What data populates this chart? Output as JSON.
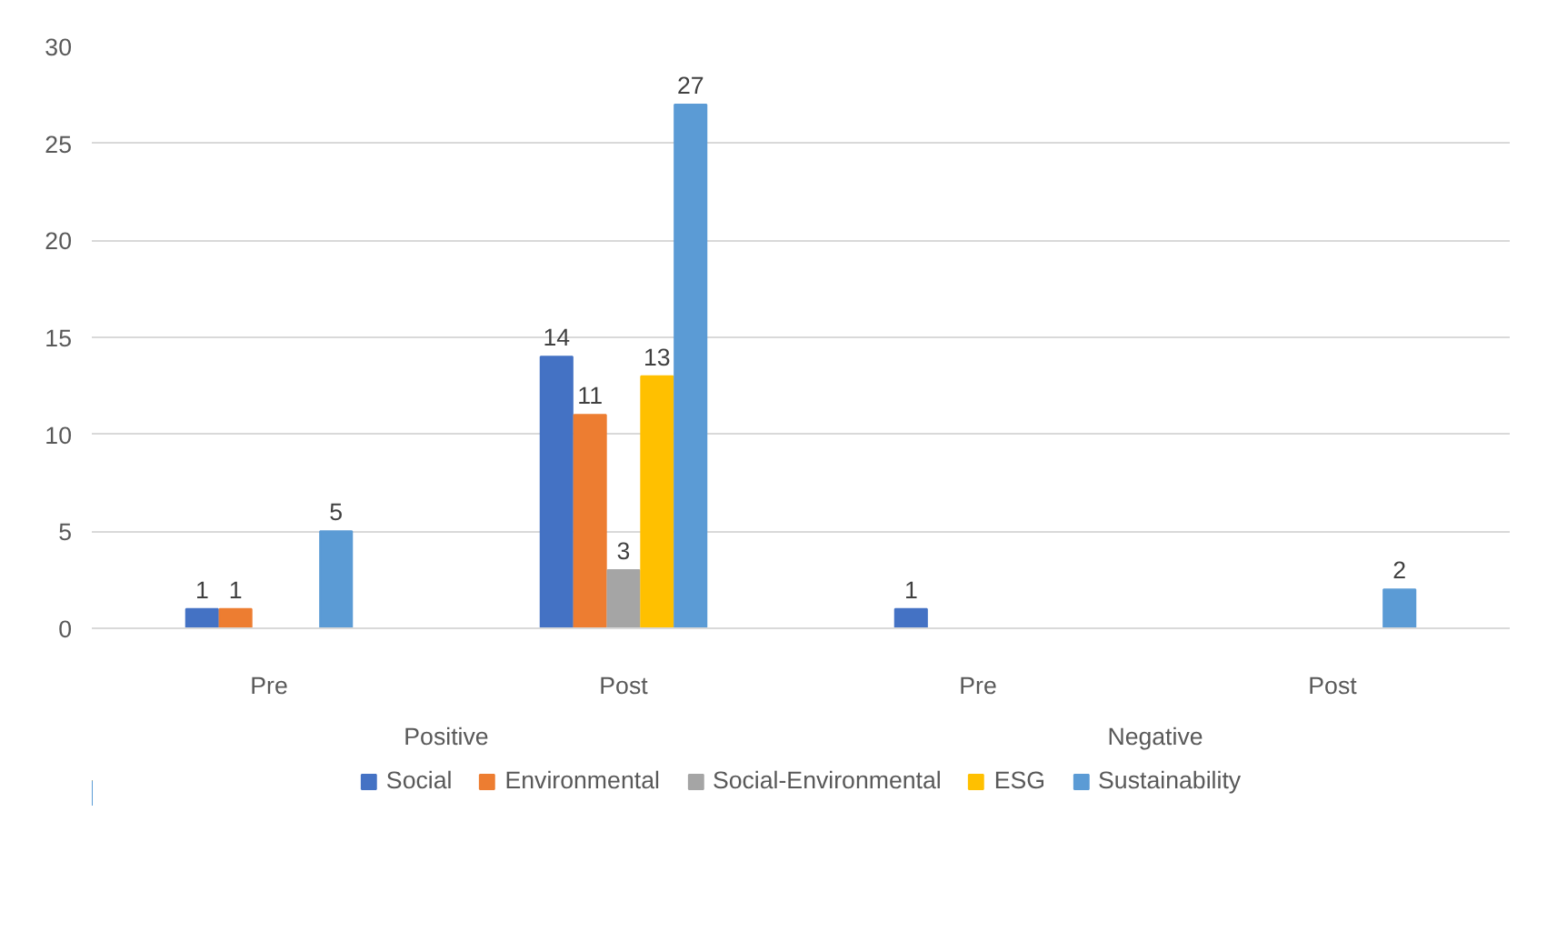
{
  "chart_data": {
    "type": "bar",
    "categories": [
      "Pre",
      "Post",
      "Pre",
      "Post"
    ],
    "annotations": [
      "Positive",
      "Negative"
    ],
    "ylim": [
      0,
      30
    ],
    "yticks": [
      0,
      5,
      10,
      15,
      20,
      25,
      30
    ],
    "grid": "y",
    "legend": "bottom",
    "series": [
      {
        "name": "Social",
        "color": "#4472c4",
        "values": [
          1,
          14,
          1,
          0
        ],
        "value_labels": [
          "1",
          "14",
          "1",
          null
        ]
      },
      {
        "name": "Environmental",
        "color": "#ed7d31",
        "values": [
          1,
          11,
          0,
          0
        ],
        "value_labels": [
          "1",
          "11",
          null,
          null
        ]
      },
      {
        "name": "Social-Environmental",
        "color": "#a5a5a5",
        "values": [
          0,
          3,
          0,
          0
        ],
        "value_labels": [
          null,
          "3",
          null,
          null
        ]
      },
      {
        "name": "ESG",
        "color": "#ffc000",
        "values": [
          0,
          13,
          0,
          0
        ],
        "value_labels": [
          null,
          "13",
          null,
          null
        ]
      },
      {
        "name": "Sustainability",
        "color": "#5b9bd5",
        "values": [
          5,
          27,
          0,
          2
        ],
        "value_labels": [
          "5",
          "27",
          null,
          "2"
        ]
      }
    ]
  }
}
